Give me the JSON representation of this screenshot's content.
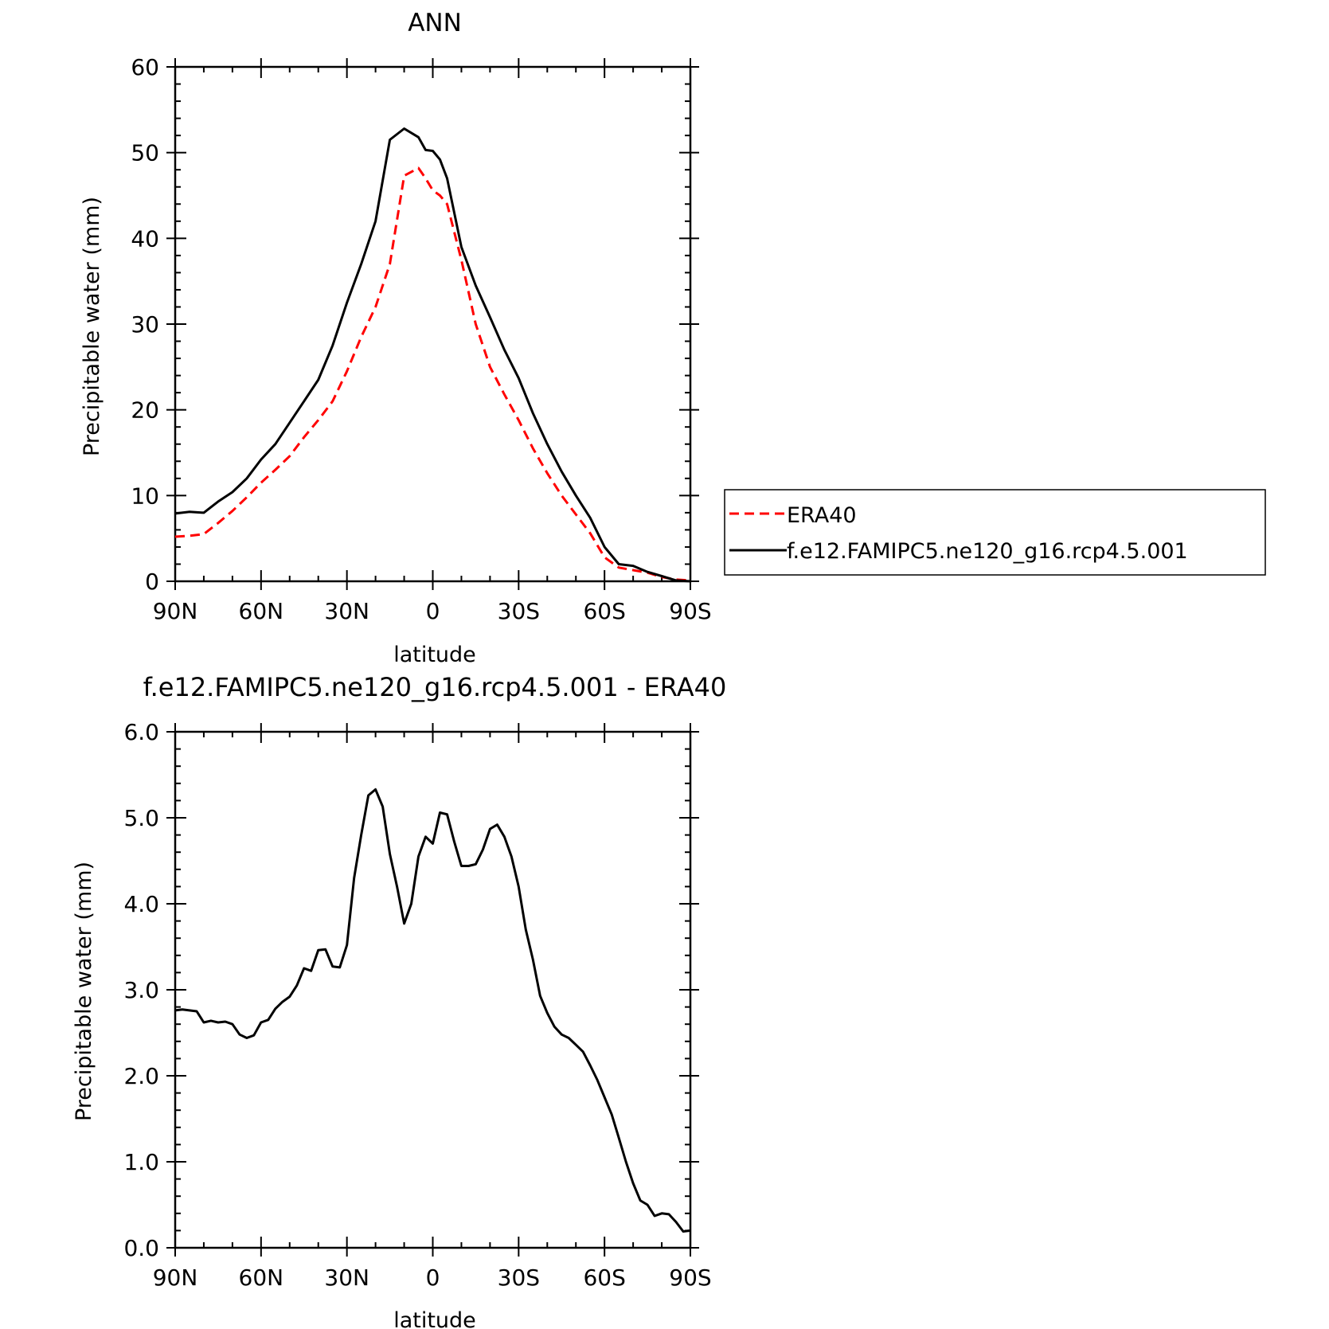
{
  "chart_data": [
    {
      "type": "line",
      "title": "ANN",
      "xlabel": "latitude",
      "ylabel": "Precipitable water (mm)",
      "xlim": [
        90,
        -90
      ],
      "ylim": [
        0,
        60
      ],
      "x_ticks": [
        90,
        60,
        30,
        0,
        -30,
        -60,
        -90
      ],
      "x_tick_labels": [
        "90N",
        "60N",
        "30N",
        "0",
        "30S",
        "60S",
        "90S"
      ],
      "y_ticks": [
        0,
        10,
        20,
        30,
        40,
        50,
        60
      ],
      "y_tick_labels": [
        "0",
        "10",
        "20",
        "30",
        "40",
        "50",
        "60"
      ],
      "grid": false,
      "legend_position": "right",
      "series": [
        {
          "name": "ERA40",
          "color": "#ff0000",
          "dash": "dashed",
          "x": [
            90,
            85,
            80,
            75,
            70,
            65,
            60,
            55,
            50,
            45,
            40,
            35,
            30,
            25,
            20,
            15,
            10,
            5,
            2.5,
            0,
            -2.5,
            -5,
            -10,
            -15,
            -20,
            -25,
            -30,
            -35,
            -40,
            -45,
            -50,
            -55,
            -60,
            -65,
            -70,
            -75,
            -80,
            -85,
            -90
          ],
          "y": [
            5.2,
            5.3,
            5.5,
            6.8,
            8.2,
            9.8,
            11.5,
            13.0,
            14.6,
            16.8,
            18.8,
            21.0,
            24.5,
            28.5,
            32.0,
            37.0,
            47.3,
            48.2,
            47.0,
            45.6,
            45.0,
            44.0,
            37.5,
            30.0,
            25.0,
            21.8,
            18.8,
            15.5,
            12.6,
            10.0,
            7.8,
            5.6,
            2.8,
            1.6,
            1.3,
            1.0,
            0.5,
            0.2,
            0.1
          ]
        },
        {
          "name": "f.e12.FAMIPC5.ne120_g16.rcp4.5.001",
          "color": "#000000",
          "dash": "solid",
          "x": [
            90,
            85,
            80,
            75,
            70,
            65,
            60,
            55,
            50,
            45,
            40,
            35,
            30,
            25,
            20,
            15,
            10,
            5,
            2.5,
            0,
            -2.5,
            -5,
            -10,
            -15,
            -20,
            -25,
            -30,
            -35,
            -40,
            -45,
            -50,
            -55,
            -60,
            -65,
            -70,
            -75,
            -80,
            -85,
            -90
          ],
          "y": [
            7.9,
            8.1,
            8.0,
            9.3,
            10.4,
            12.0,
            14.2,
            16.0,
            18.5,
            21.0,
            23.5,
            27.5,
            32.5,
            37.0,
            42.0,
            51.5,
            52.8,
            51.8,
            50.3,
            50.2,
            49.2,
            47.0,
            39.0,
            34.5,
            30.8,
            27.0,
            23.7,
            19.6,
            16.0,
            12.8,
            10.0,
            7.4,
            4.0,
            2.0,
            1.8,
            1.1,
            0.6,
            0.1,
            0.0
          ]
        }
      ]
    },
    {
      "type": "line",
      "title": "f.e12.FAMIPC5.ne120_g16.rcp4.5.001 - ERA40",
      "xlabel": "latitude",
      "ylabel": "Precipitable water (mm)",
      "xlim": [
        90,
        -90
      ],
      "ylim": [
        0,
        6
      ],
      "x_ticks": [
        90,
        60,
        30,
        0,
        -30,
        -60,
        -90
      ],
      "x_tick_labels": [
        "90N",
        "60N",
        "30N",
        "0",
        "30S",
        "60S",
        "90S"
      ],
      "y_ticks": [
        0,
        1,
        2,
        3,
        4,
        5,
        6
      ],
      "y_tick_labels": [
        "0.0",
        "1.0",
        "2.0",
        "3.0",
        "4.0",
        "5.0",
        "6.0"
      ],
      "grid": false,
      "series": [
        {
          "color": "#000000",
          "dash": "solid",
          "x": [
            90,
            87.5,
            82.5,
            80,
            77.5,
            75,
            72.5,
            70,
            67.5,
            65,
            62.5,
            60,
            57.5,
            55,
            52.5,
            50,
            47.5,
            45,
            42.5,
            40,
            37.5,
            35,
            32.5,
            30,
            27.5,
            25,
            22.5,
            20,
            17.5,
            15,
            12.5,
            10,
            7.5,
            5,
            2.5,
            0,
            -2.5,
            -5,
            -7.5,
            -10,
            -12.5,
            -15,
            -17.5,
            -20,
            -22.5,
            -25,
            -27.5,
            -30,
            -32.5,
            -35,
            -37.5,
            -40,
            -42.5,
            -45,
            -47.5,
            -50,
            -52.5,
            -55,
            -57.5,
            -60,
            -62.5,
            -65,
            -67.5,
            -70,
            -72.5,
            -75,
            -77.5,
            -80,
            -82.5,
            -85,
            -87.5,
            -90
          ],
          "y": [
            2.76,
            2.77,
            2.75,
            2.62,
            2.64,
            2.62,
            2.63,
            2.6,
            2.48,
            2.44,
            2.47,
            2.62,
            2.65,
            2.78,
            2.86,
            2.92,
            3.05,
            3.25,
            3.22,
            3.46,
            3.47,
            3.27,
            3.26,
            3.52,
            4.3,
            4.8,
            5.26,
            5.33,
            5.13,
            4.58,
            4.2,
            3.77,
            4.0,
            4.55,
            4.78,
            4.7,
            5.06,
            5.04,
            4.72,
            4.44,
            4.44,
            4.46,
            4.63,
            4.87,
            4.92,
            4.78,
            4.55,
            4.2,
            3.7,
            3.35,
            2.93,
            2.73,
            2.57,
            2.48,
            2.44,
            2.36,
            2.28,
            2.12,
            1.95,
            1.75,
            1.55,
            1.28,
            1.0,
            0.75,
            0.55,
            0.5,
            0.37,
            0.4,
            0.39,
            0.3,
            0.19,
            0.2
          ]
        }
      ]
    }
  ]
}
